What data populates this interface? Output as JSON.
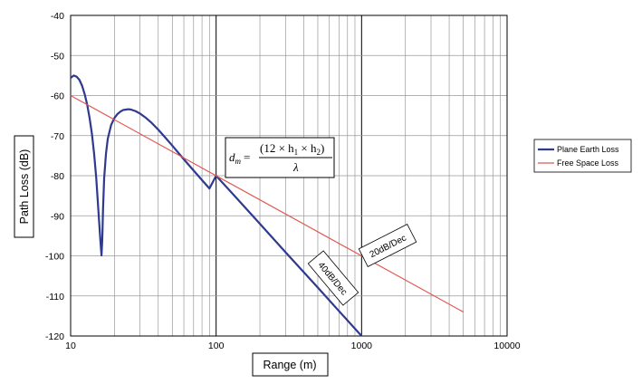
{
  "chart_data": {
    "type": "line",
    "title": "",
    "xlabel": "Range (m)",
    "ylabel": "Path Loss (dB)",
    "x_scale": "log",
    "xlim": [
      10,
      10000
    ],
    "ylim": [
      -120,
      -40
    ],
    "x_ticks": [
      "10",
      "100",
      "1000",
      "10000"
    ],
    "y_ticks": [
      "-40",
      "-50",
      "-60",
      "-70",
      "-80",
      "-90",
      "-100",
      "-110",
      "-120"
    ],
    "grid": true,
    "legend_position": "right",
    "series": [
      {
        "name": "Plane Earth Loss",
        "color": "#2e3a8f",
        "x": [
          10,
          10.5,
          11,
          11.5,
          12,
          12.5,
          13,
          13.5,
          14,
          14.5,
          15,
          15.5,
          16,
          16.3,
          16.5,
          16.7,
          17,
          17.5,
          18,
          19,
          20,
          21,
          22,
          23,
          24,
          25,
          26,
          28,
          30,
          33,
          36,
          40,
          45,
          50,
          60,
          70,
          80,
          90,
          100,
          150,
          200,
          300,
          500,
          700,
          1000
        ],
        "y": [
          -55.6,
          -55.0,
          -55.3,
          -56.1,
          -57.6,
          -59.7,
          -62.3,
          -65.6,
          -69.5,
          -74.5,
          -80.6,
          -88.4,
          -96.0,
          -99.9,
          -96.0,
          -88.4,
          -80.6,
          -74.5,
          -70.8,
          -67.3,
          -65.6,
          -64.6,
          -64.0,
          -63.6,
          -63.5,
          -63.4,
          -63.5,
          -63.9,
          -64.5,
          -65.6,
          -66.8,
          -68.5,
          -70.6,
          -72.5,
          -75.9,
          -78.7,
          -81.1,
          -83.2,
          -80.0,
          -87.0,
          -92.0,
          -99.1,
          -107.9,
          -113.8,
          -120.0
        ]
      },
      {
        "name": "Free Space Loss",
        "color": "#e0574f",
        "x": [
          10,
          5000
        ],
        "y": [
          -60,
          -114
        ]
      }
    ],
    "annotations": [
      {
        "text": "20dB/Dec",
        "x": 1650,
        "y": -98.5
      },
      {
        "text": "40dB/Dec",
        "x": 480,
        "y": -106
      }
    ]
  },
  "formula": {
    "lhs": "d",
    "lhs_sub": "m",
    "eq": "=",
    "numerator": "(12 × h",
    "sub1": "1",
    "mid": " × h",
    "sub2": "2",
    "close": ")",
    "denominator": "λ"
  }
}
